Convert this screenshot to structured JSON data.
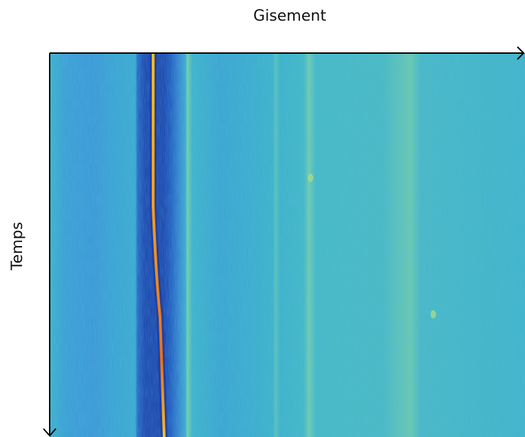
{
  "labels": {
    "x_axis": "Gisement",
    "y_axis": "Temps"
  }
}
